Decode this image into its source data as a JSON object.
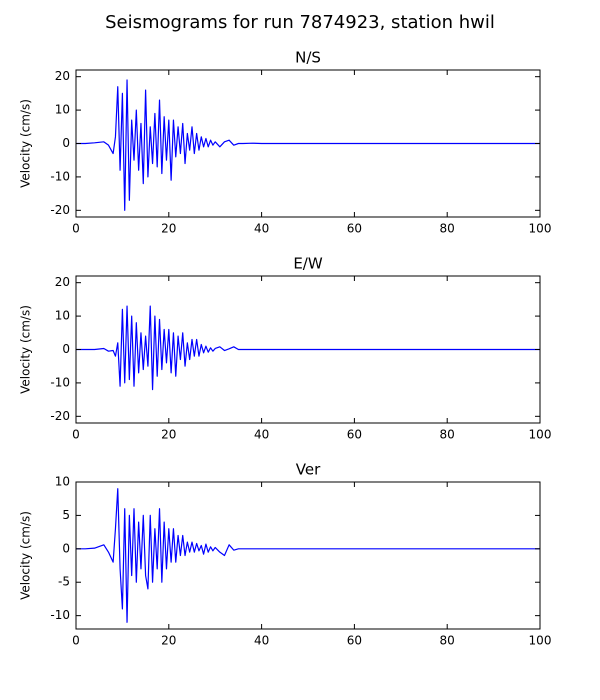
{
  "title": "Seismograms for run 7874923, station hwil",
  "chart_data": [
    {
      "type": "line",
      "title": "N/S",
      "ylabel": "Velocity (cm/s)",
      "x": [
        0,
        2,
        4,
        6,
        7,
        8,
        8.5,
        9,
        9.5,
        10,
        10.5,
        11,
        11.5,
        12,
        12.5,
        13,
        13.5,
        14,
        14.5,
        15,
        15.5,
        16,
        16.5,
        17,
        17.5,
        18,
        18.5,
        19,
        19.5,
        20,
        20.5,
        21,
        21.5,
        22,
        22.5,
        23,
        23.5,
        24,
        24.5,
        25,
        25.5,
        26,
        26.5,
        27,
        27.5,
        28,
        28.5,
        29,
        29.5,
        30,
        31,
        32,
        33,
        34,
        35,
        36,
        38,
        40,
        50,
        60,
        70,
        80,
        90,
        100
      ],
      "series": [
        {
          "color": "#0000ff",
          "values": [
            0,
            0,
            0.2,
            0.5,
            -0.5,
            -3,
            2,
            17,
            -8,
            15,
            -20,
            19,
            -17,
            7,
            -5,
            10,
            -8,
            6,
            -12,
            16,
            -10,
            5,
            -6,
            9,
            -7,
            13,
            -9,
            8,
            -5,
            7,
            -11,
            7,
            -4,
            5,
            -3,
            6,
            -6,
            3,
            -2,
            5,
            -3,
            3,
            -2,
            2,
            -1,
            1.5,
            -1,
            1,
            -0.5,
            0.5,
            -1,
            0.5,
            1,
            -0.5,
            0,
            0,
            0.1,
            0,
            0,
            0,
            0,
            0,
            0,
            0
          ]
        }
      ],
      "xlim": [
        0,
        100
      ],
      "xticks": [
        0,
        20,
        40,
        60,
        80,
        100
      ],
      "ylim": [
        -22,
        22
      ],
      "yticks": [
        -20,
        -10,
        0,
        10,
        20
      ]
    },
    {
      "type": "line",
      "title": "E/W",
      "ylabel": "Velocity (cm/s)",
      "x": [
        0,
        2,
        4,
        6,
        7,
        8,
        8.5,
        9,
        9.5,
        10,
        10.5,
        11,
        11.5,
        12,
        12.5,
        13,
        13.5,
        14,
        14.5,
        15,
        15.5,
        16,
        16.5,
        17,
        17.5,
        18,
        18.5,
        19,
        19.5,
        20,
        20.5,
        21,
        21.5,
        22,
        22.5,
        23,
        23.5,
        24,
        24.5,
        25,
        25.5,
        26,
        26.5,
        27,
        27.5,
        28,
        28.5,
        29,
        29.5,
        30,
        31,
        32,
        33,
        34,
        35,
        36,
        38,
        40,
        50,
        60,
        70,
        80,
        90,
        100
      ],
      "series": [
        {
          "color": "#0000ff",
          "values": [
            0,
            0,
            0,
            0.3,
            -0.5,
            -0.3,
            -2,
            2,
            -11,
            12,
            -10,
            13,
            -9,
            10,
            -11,
            8,
            -7,
            5,
            -6,
            4,
            -5,
            13,
            -12,
            10,
            -8,
            9,
            -6,
            6,
            -4,
            6,
            -7,
            5,
            -8,
            4,
            -3,
            5,
            -5,
            2,
            -3,
            3,
            -2,
            3,
            -2,
            1.5,
            -1,
            1,
            -0.8,
            0.5,
            -0.5,
            0.3,
            0.8,
            -0.3,
            0.2,
            0.8,
            0,
            0,
            0,
            0,
            0,
            0,
            0,
            0,
            0,
            0
          ]
        }
      ],
      "xlim": [
        0,
        100
      ],
      "xticks": [
        0,
        20,
        40,
        60,
        80,
        100
      ],
      "ylim": [
        -22,
        22
      ],
      "yticks": [
        -20,
        -10,
        0,
        10,
        20
      ]
    },
    {
      "type": "line",
      "title": "Ver",
      "ylabel": "Velocity (cm/s)",
      "x": [
        0,
        2,
        4,
        6,
        7,
        8,
        8.5,
        9,
        9.5,
        10,
        10.5,
        11,
        11.5,
        12,
        12.5,
        13,
        13.5,
        14,
        14.5,
        15,
        15.5,
        16,
        16.5,
        17,
        17.5,
        18,
        18.5,
        19,
        19.5,
        20,
        20.5,
        21,
        21.5,
        22,
        22.5,
        23,
        23.5,
        24,
        24.5,
        25,
        25.5,
        26,
        26.5,
        27,
        27.5,
        28,
        28.5,
        29,
        29.5,
        30,
        31,
        32,
        33,
        34,
        35,
        36,
        38,
        40,
        50,
        60,
        70,
        80,
        90,
        100
      ],
      "series": [
        {
          "color": "#0000ff",
          "values": [
            0,
            0,
            0.1,
            0.6,
            -0.5,
            -2,
            3,
            9,
            -3,
            -9,
            6,
            -11,
            5,
            -4,
            6,
            -5,
            4,
            -3,
            5,
            -4,
            -6,
            5,
            -5,
            3,
            -3,
            6,
            -5,
            4,
            -3,
            3,
            -2,
            3,
            -2,
            2,
            -1,
            2,
            -1,
            1,
            -0.5,
            1,
            -0.5,
            0.8,
            -0.3,
            0.5,
            -0.8,
            0.7,
            -0.5,
            0.3,
            -0.3,
            0.2,
            -0.5,
            -1,
            0.6,
            -0.2,
            0,
            0,
            0,
            0,
            0,
            0,
            0,
            0,
            0,
            0
          ]
        }
      ],
      "xlim": [
        0,
        100
      ],
      "xticks": [
        0,
        20,
        40,
        60,
        80,
        100
      ],
      "ylim": [
        -12,
        10
      ],
      "yticks": [
        -10,
        -5,
        0,
        5,
        10
      ]
    }
  ]
}
